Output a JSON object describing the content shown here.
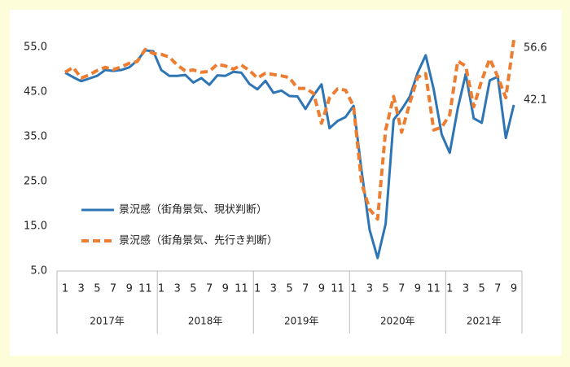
{
  "chart_data": {
    "type": "line",
    "categories": [
      "1",
      null,
      "3",
      null,
      "5",
      null,
      "7",
      null,
      "9",
      null,
      "11",
      null,
      "1",
      null,
      "3",
      null,
      "5",
      null,
      "7",
      null,
      "9",
      null,
      "11",
      null,
      "1",
      null,
      "3",
      null,
      "5",
      null,
      "7",
      null,
      "9",
      null,
      "11",
      null,
      "1",
      null,
      "3",
      null,
      "5",
      null,
      "7",
      null,
      "9",
      null,
      "11",
      null,
      "1",
      null,
      "3",
      null,
      "5",
      null,
      "7",
      null,
      "9"
    ],
    "years": [
      "2017年",
      "2018年",
      "2019年",
      "2020年",
      "2021年"
    ],
    "series": [
      {
        "name": "景況感（街角景気、現状判断）",
        "color": "#2e75b6",
        "style": "solid",
        "values": [
          49.3,
          48.3,
          47.4,
          48.0,
          48.6,
          49.9,
          49.7,
          49.9,
          50.5,
          52.0,
          54.3,
          54.1,
          49.9,
          48.6,
          48.6,
          48.8,
          47.1,
          48.1,
          46.6,
          48.7,
          48.6,
          49.5,
          49.3,
          46.8,
          45.6,
          47.5,
          44.8,
          45.3,
          44.1,
          44.0,
          41.2,
          44.2,
          46.7,
          36.9,
          38.5,
          39.4,
          41.9,
          27.4,
          14.2,
          7.9,
          15.5,
          38.8,
          41.1,
          43.9,
          49.3,
          53.2,
          45.6,
          35.5,
          31.4,
          41.3,
          49.0,
          39.1,
          38.1,
          47.6,
          48.4,
          34.7,
          42.1
        ]
      },
      {
        "name": "景況感（街角景気、先行き判断）",
        "color": "#ed7d31",
        "style": "dashed",
        "values": [
          49.4,
          50.5,
          48.1,
          48.8,
          49.8,
          50.5,
          50.0,
          50.6,
          51.4,
          51.8,
          54.5,
          53.6,
          53.4,
          52.8,
          51.0,
          49.7,
          49.9,
          49.4,
          49.6,
          51.2,
          50.8,
          50.1,
          51.0,
          49.8,
          48.1,
          49.2,
          48.9,
          48.6,
          48.2,
          45.8,
          45.8,
          44.7,
          38.0,
          43.7,
          45.7,
          45.4,
          41.8,
          24.6,
          18.8,
          16.6,
          36.5,
          44.0,
          36.0,
          42.4,
          48.3,
          49.1,
          36.5,
          37.1,
          39.9,
          51.9,
          50.8,
          41.7,
          47.6,
          52.4,
          48.4,
          43.7,
          56.6
        ]
      }
    ],
    "annotations": [
      {
        "text": "56.6",
        "series": 1
      },
      {
        "text": "42.1",
        "series": 0
      }
    ],
    "ylim": [
      5,
      57
    ],
    "yticks": [
      {
        "value": 5,
        "label": "5.0"
      },
      {
        "value": 15,
        "label": "15.0"
      },
      {
        "value": 25,
        "label": "25.0"
      },
      {
        "value": 35,
        "label": "35.0"
      },
      {
        "value": 45,
        "label": "45.0"
      },
      {
        "value": 55,
        "label": "55.0"
      }
    ]
  }
}
